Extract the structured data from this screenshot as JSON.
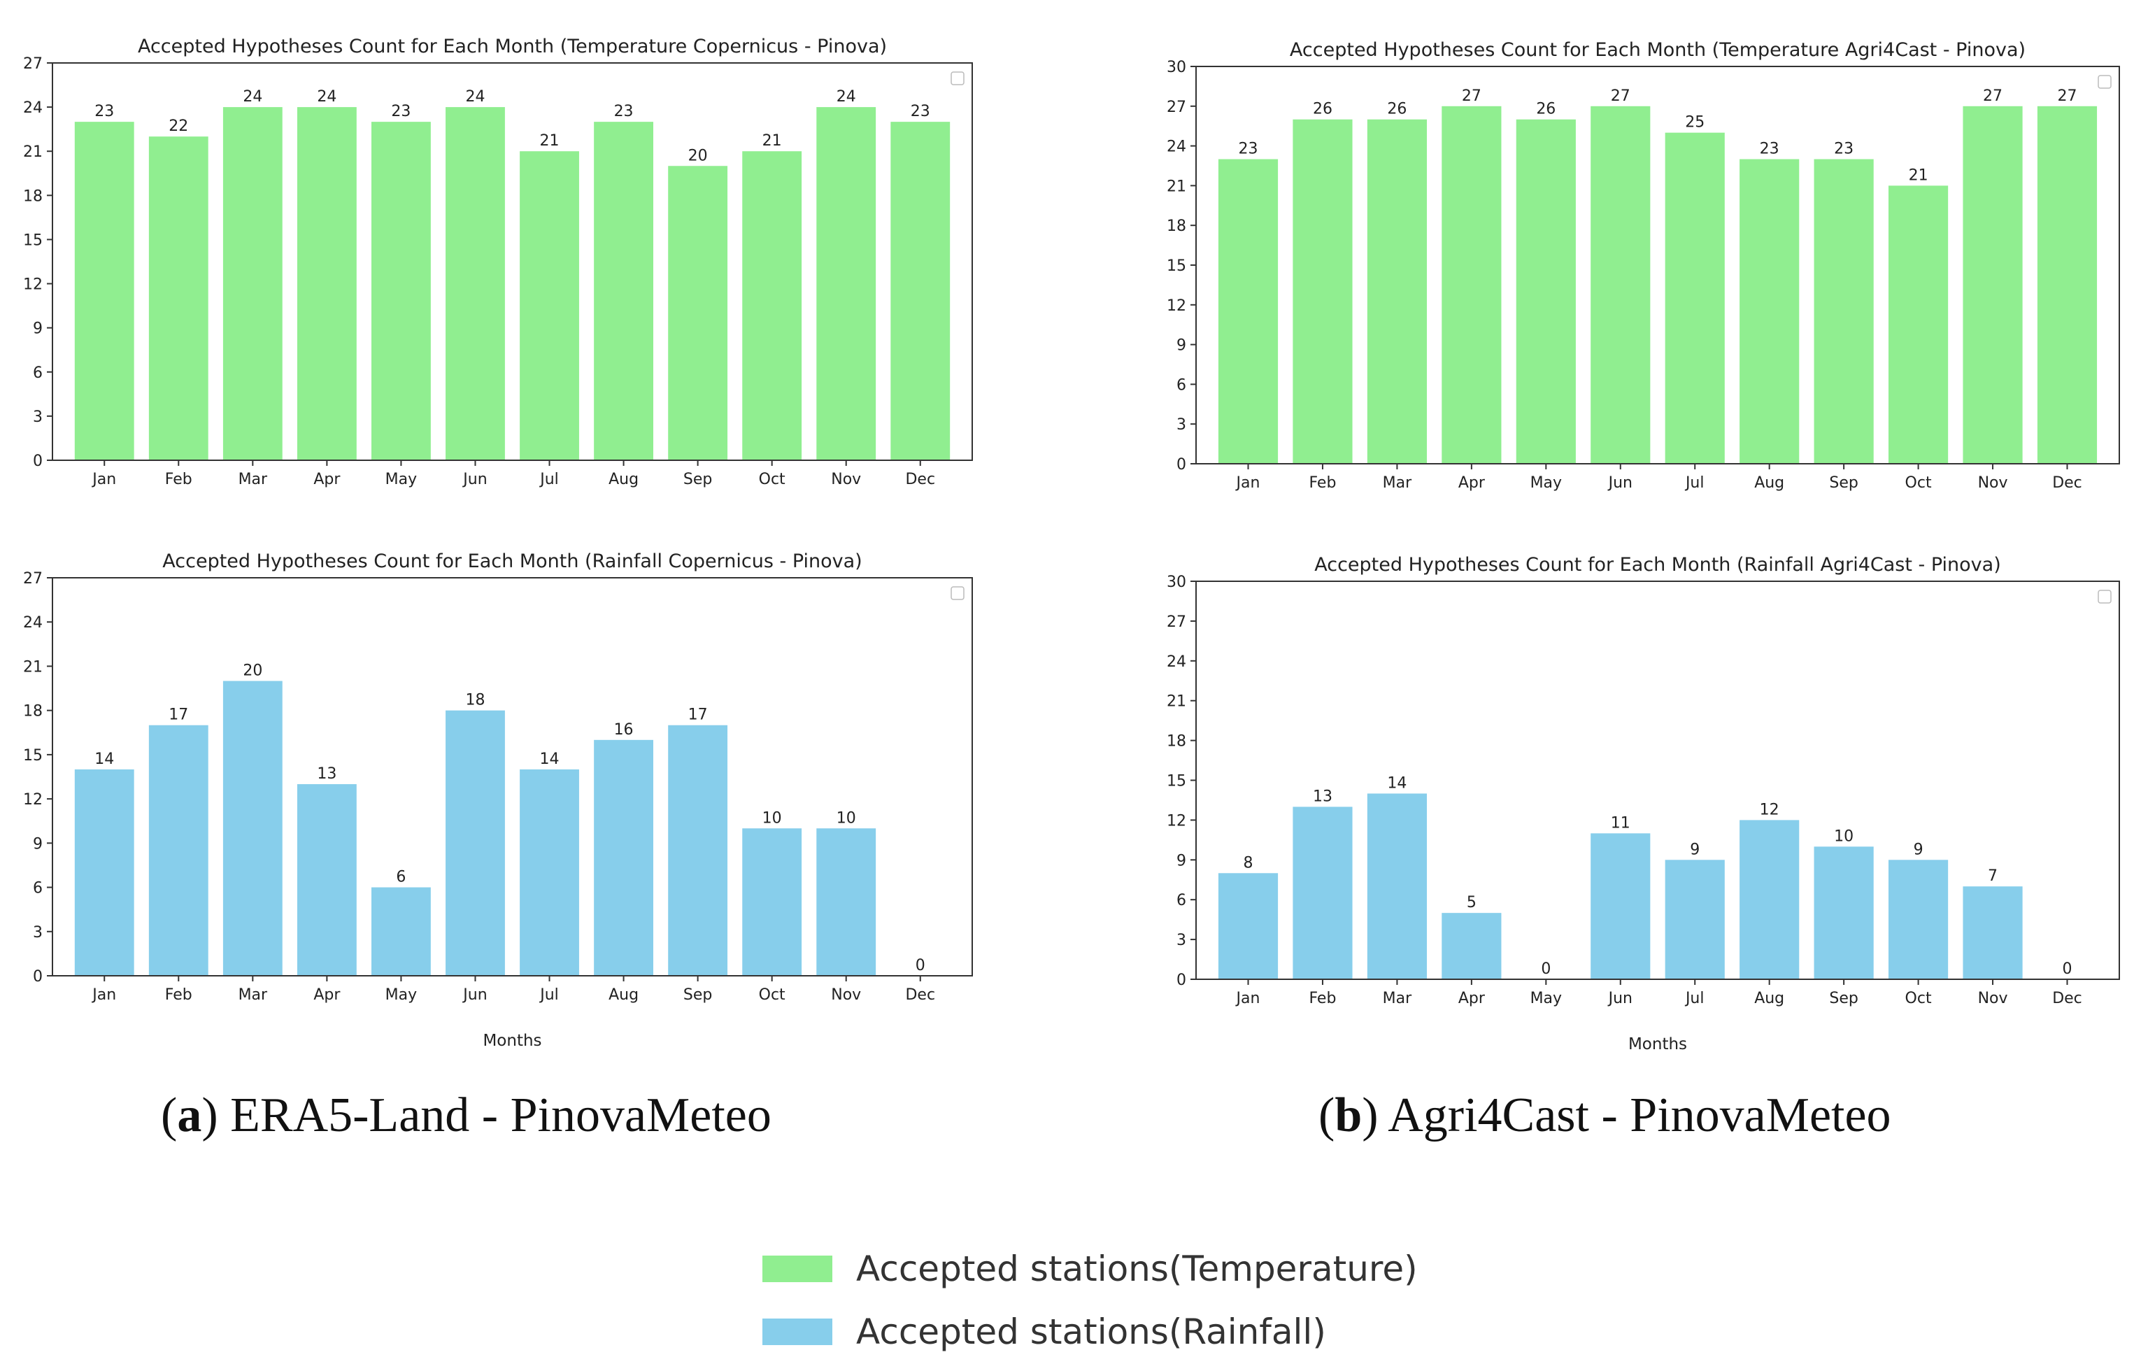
{
  "chart_data": [
    {
      "id": "a-top",
      "type": "bar",
      "title": "Accepted Hypotheses Count for Each Month (Temperature Copernicus - Pinova)",
      "categories": [
        "Jan",
        "Feb",
        "Mar",
        "Apr",
        "May",
        "Jun",
        "Jul",
        "Aug",
        "Sep",
        "Oct",
        "Nov",
        "Dec"
      ],
      "values": [
        23,
        22,
        24,
        24,
        23,
        24,
        21,
        23,
        20,
        21,
        24,
        23
      ],
      "ylim": [
        0,
        27
      ],
      "yticks": [
        0,
        3,
        6,
        9,
        12,
        15,
        18,
        21,
        24,
        27
      ],
      "xlabel": "",
      "ylabel": "",
      "color": "#90EE90",
      "legend": "top-right (empty)"
    },
    {
      "id": "b-top",
      "type": "bar",
      "title": "Accepted Hypotheses Count for Each Month (Temperature Agri4Cast - Pinova)",
      "categories": [
        "Jan",
        "Feb",
        "Mar",
        "Apr",
        "May",
        "Jun",
        "Jul",
        "Aug",
        "Sep",
        "Oct",
        "Nov",
        "Dec"
      ],
      "values": [
        23,
        26,
        26,
        27,
        26,
        27,
        25,
        23,
        23,
        21,
        27,
        27
      ],
      "ylim": [
        0,
        30
      ],
      "yticks": [
        0,
        3,
        6,
        9,
        12,
        15,
        18,
        21,
        24,
        27,
        30
      ],
      "xlabel": "",
      "ylabel": "",
      "color": "#90EE90",
      "legend": "top-right (empty)"
    },
    {
      "id": "a-bottom",
      "type": "bar",
      "title": "Accepted Hypotheses Count for Each Month (Rainfall Copernicus - Pinova)",
      "categories": [
        "Jan",
        "Feb",
        "Mar",
        "Apr",
        "May",
        "Jun",
        "Jul",
        "Aug",
        "Sep",
        "Oct",
        "Nov",
        "Dec"
      ],
      "values": [
        14,
        17,
        20,
        13,
        6,
        18,
        14,
        16,
        17,
        10,
        10,
        0
      ],
      "ylim": [
        0,
        27
      ],
      "yticks": [
        0,
        3,
        6,
        9,
        12,
        15,
        18,
        21,
        24,
        27
      ],
      "xlabel": "Months",
      "ylabel": "",
      "color": "#87CEEB",
      "legend": "top-right (empty)"
    },
    {
      "id": "b-bottom",
      "type": "bar",
      "title": "Accepted Hypotheses Count for Each Month (Rainfall Agri4Cast - Pinova)",
      "categories": [
        "Jan",
        "Feb",
        "Mar",
        "Apr",
        "May",
        "Jun",
        "Jul",
        "Aug",
        "Sep",
        "Oct",
        "Nov",
        "Dec"
      ],
      "values": [
        8,
        13,
        14,
        5,
        0,
        11,
        9,
        12,
        10,
        9,
        7,
        0
      ],
      "ylim": [
        0,
        30
      ],
      "yticks": [
        0,
        3,
        6,
        9,
        12,
        15,
        18,
        21,
        24,
        27,
        30
      ],
      "xlabel": "Months",
      "ylabel": "",
      "color": "#87CEEB",
      "legend": "top-right (empty)"
    }
  ],
  "captions": {
    "a": {
      "letter": "a",
      "text": " ERA5-Land - PinovaMeteo"
    },
    "b": {
      "letter": "b",
      "text": " Agri4Cast - PinovaMeteo"
    }
  },
  "legend": {
    "items": [
      {
        "label": "Accepted stations(Temperature)",
        "color": "#90EE90"
      },
      {
        "label": "Accepted stations(Rainfall)",
        "color": "#87CEEB"
      }
    ]
  }
}
